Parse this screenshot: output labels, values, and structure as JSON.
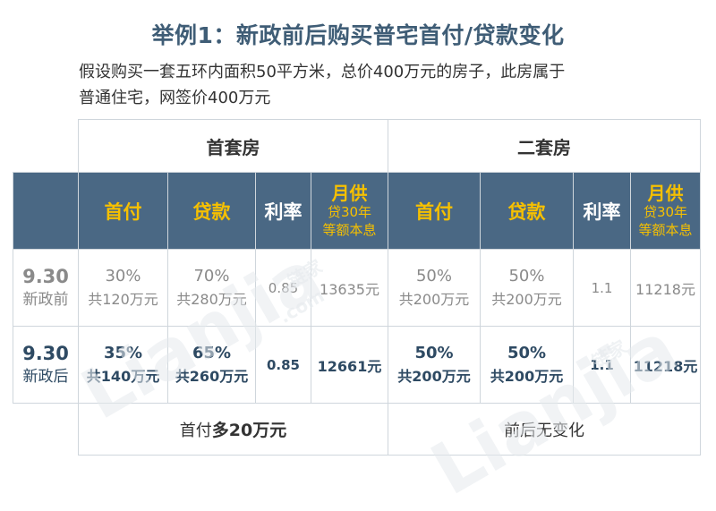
{
  "title": "举例1：新政前后购买普宅首付/贷款变化",
  "subtitle_line1": "假设购买一套五环内面积50平方米，总价400万元的房子，此房属于",
  "subtitle_line2": "普通住宅，网签价400万元",
  "groups": {
    "first": "首套房",
    "second": "二套房"
  },
  "columns": {
    "down": "首付",
    "loan": "贷款",
    "rate": "利率",
    "monthly_title": "月供",
    "monthly_sub1": "贷30年",
    "monthly_sub2": "等额本息"
  },
  "rows": {
    "old": {
      "date": "9.30",
      "name": "新政前",
      "first": {
        "down_pct": "30%",
        "down_amt": "共120万元",
        "loan_pct": "70%",
        "loan_amt": "共280万元",
        "rate": "0.85",
        "monthly": "13635元"
      },
      "second": {
        "down_pct": "50%",
        "down_amt": "共200万元",
        "loan_pct": "50%",
        "loan_amt": "共200万元",
        "rate": "1.1",
        "monthly": "11218元"
      }
    },
    "new": {
      "date": "9.30",
      "name": "新政后",
      "first": {
        "down_pct": "35%",
        "down_amt": "共140万元",
        "loan_pct": "65%",
        "loan_amt": "共260万元",
        "rate": "0.85",
        "monthly": "12661元"
      },
      "second": {
        "down_pct": "50%",
        "down_amt": "共200万元",
        "loan_pct": "50%",
        "loan_amt": "共200万元",
        "rate": "1.1",
        "monthly": "11218元"
      }
    }
  },
  "footer": {
    "first_prefix": "首付",
    "first_bold": "多20万元",
    "second": "前后无变化"
  },
  "watermark": {
    "brand": "Lianjia",
    "cn": "链家",
    "dotcom": ".com"
  },
  "colors": {
    "header_bg": "#4a6884",
    "gold": "#f6c000",
    "title": "#3f5d76"
  }
}
